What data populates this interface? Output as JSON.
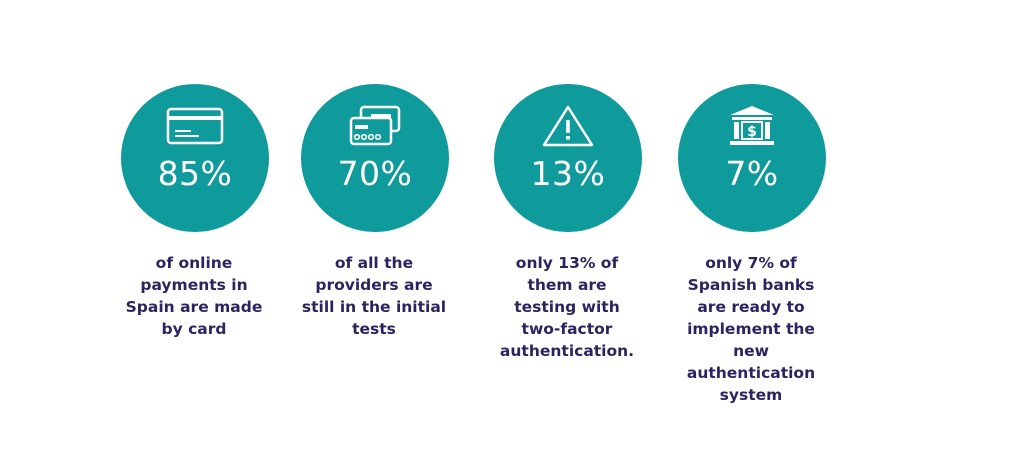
{
  "stats": [
    {
      "icon": "credit-card-icon",
      "value": "85%",
      "text": "of online\npayments in\nSpain are made\nby card"
    },
    {
      "icon": "cards-icon",
      "value": "70%",
      "text": "of all the\nproviders are\nstill in the initial\ntests"
    },
    {
      "icon": "warning-triangle-icon",
      "value": "13%",
      "text": "only 13% of\nthem are\ntesting with\ntwo-factor\nauthentication."
    },
    {
      "icon": "bank-dollar-icon",
      "value": "7%",
      "text": "only 7% of\nSpanish banks\nare ready to\nimplement the\nnew\nauthentication\nsystem"
    }
  ],
  "colors": {
    "circle": "#0f9a9b",
    "text": "#2a2560",
    "icon": "#ffffff"
  }
}
